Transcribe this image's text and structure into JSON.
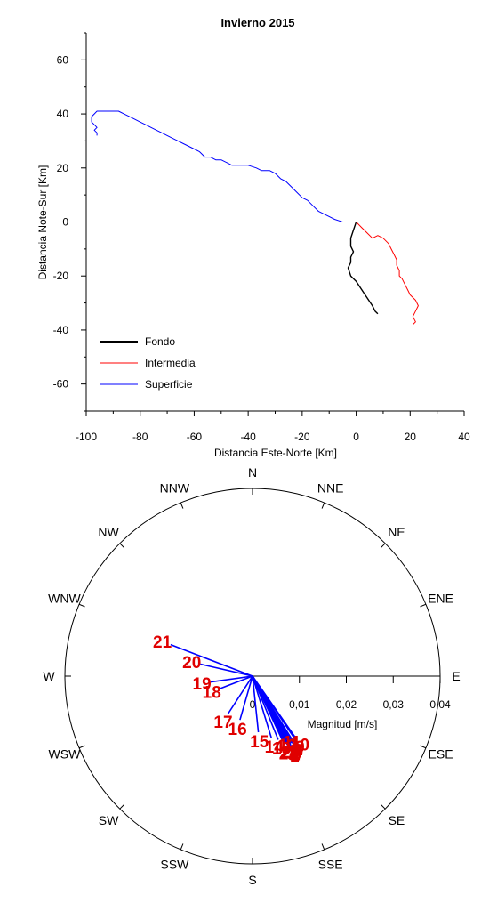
{
  "chart_data": [
    {
      "type": "line",
      "title": "Invierno 2015",
      "xlabel": "Distancia Este-Norte [Km]",
      "ylabel": "Distancia Note-Sur [Km]",
      "xlim": [
        -100,
        40
      ],
      "ylim": [
        -70,
        70
      ],
      "xticks": [
        -100,
        -80,
        -60,
        -40,
        -20,
        0,
        20,
        40
      ],
      "yticks": [
        -60,
        -40,
        -20,
        0,
        20,
        40,
        60
      ],
      "grid": false,
      "legend_position": "bottom-left",
      "series": [
        {
          "name": "Fondo",
          "color": "#000000",
          "points": [
            [
              0,
              0
            ],
            [
              -1,
              -3
            ],
            [
              -2,
              -6
            ],
            [
              -2,
              -9
            ],
            [
              -1,
              -11
            ],
            [
              -2,
              -13
            ],
            [
              -2,
              -15
            ],
            [
              -3,
              -17
            ],
            [
              -2,
              -20
            ],
            [
              0,
              -22
            ],
            [
              2,
              -25
            ],
            [
              4,
              -28
            ],
            [
              6,
              -31
            ],
            [
              7,
              -33
            ],
            [
              8,
              -34
            ]
          ]
        },
        {
          "name": "Intermedia",
          "color": "#ff0000",
          "points": [
            [
              0,
              0
            ],
            [
              2,
              -2
            ],
            [
              4,
              -4
            ],
            [
              6,
              -6
            ],
            [
              8,
              -5
            ],
            [
              10,
              -6
            ],
            [
              12,
              -8
            ],
            [
              13,
              -10
            ],
            [
              14,
              -12
            ],
            [
              15,
              -14
            ],
            [
              15,
              -16
            ],
            [
              16,
              -18
            ],
            [
              16,
              -20
            ],
            [
              17,
              -21
            ],
            [
              18,
              -23
            ],
            [
              19,
              -25
            ],
            [
              20,
              -27
            ],
            [
              22,
              -29
            ],
            [
              23,
              -31
            ],
            [
              22,
              -33
            ],
            [
              21,
              -35
            ],
            [
              22,
              -37
            ],
            [
              21,
              -38
            ]
          ]
        },
        {
          "name": "Superficie",
          "color": "#0000ff",
          "points": [
            [
              0,
              0
            ],
            [
              -5,
              0
            ],
            [
              -8,
              1
            ],
            [
              -10,
              2
            ],
            [
              -12,
              3
            ],
            [
              -14,
              4
            ],
            [
              -16,
              6
            ],
            [
              -18,
              8
            ],
            [
              -20,
              9
            ],
            [
              -22,
              11
            ],
            [
              -24,
              13
            ],
            [
              -26,
              15
            ],
            [
              -28,
              16
            ],
            [
              -30,
              18
            ],
            [
              -32,
              19
            ],
            [
              -35,
              19
            ],
            [
              -37,
              20
            ],
            [
              -40,
              21
            ],
            [
              -43,
              21
            ],
            [
              -46,
              21
            ],
            [
              -48,
              22
            ],
            [
              -50,
              23
            ],
            [
              -52,
              23
            ],
            [
              -54,
              24
            ],
            [
              -56,
              24
            ],
            [
              -58,
              26
            ],
            [
              -60,
              27
            ],
            [
              -62,
              28
            ],
            [
              -64,
              29
            ],
            [
              -66,
              30
            ],
            [
              -68,
              31
            ],
            [
              -70,
              32
            ],
            [
              -72,
              33
            ],
            [
              -74,
              34
            ],
            [
              -76,
              35
            ],
            [
              -78,
              36
            ],
            [
              -80,
              37
            ],
            [
              -82,
              38
            ],
            [
              -84,
              39
            ],
            [
              -86,
              40
            ],
            [
              -88,
              41
            ],
            [
              -90,
              41
            ],
            [
              -92,
              41
            ],
            [
              -94,
              41
            ],
            [
              -96,
              41
            ],
            [
              -97,
              40
            ],
            [
              -98,
              39
            ],
            [
              -98,
              37
            ],
            [
              -97,
              36
            ],
            [
              -96,
              35
            ],
            [
              -97,
              34
            ],
            [
              -96,
              33
            ],
            [
              -96,
              32
            ]
          ]
        }
      ]
    },
    {
      "type": "polar-vector",
      "xlabel": "Magnitud [m/s]",
      "rlim": [
        0,
        0.04
      ],
      "rticks": [
        "0",
        "0,01",
        "0,02",
        "0,03",
        "0,04"
      ],
      "directions": [
        "N",
        "NNE",
        "NE",
        "ENE",
        "E",
        "ESE",
        "SE",
        "SSE",
        "S",
        "SSW",
        "SW",
        "WSW",
        "W",
        "WNW",
        "NW",
        "NNW"
      ],
      "vector_color": "#0000ff",
      "label_color": "#e00000",
      "vectors": [
        {
          "label": "1",
          "angle": 152,
          "magnitude": 0.0172
        },
        {
          "label": "2",
          "angle": 151,
          "magnitude": 0.0171
        },
        {
          "label": "3",
          "angle": 153,
          "magnitude": 0.0167
        },
        {
          "label": "4",
          "angle": 149,
          "magnitude": 0.0168
        },
        {
          "label": "5",
          "angle": 150,
          "magnitude": 0.0165
        },
        {
          "label": "6",
          "angle": 151,
          "magnitude": 0.0166
        },
        {
          "label": "7",
          "angle": 152,
          "magnitude": 0.0164
        },
        {
          "label": "8",
          "angle": 148,
          "magnitude": 0.0166
        },
        {
          "label": "9",
          "angle": 146,
          "magnitude": 0.0162
        },
        {
          "label": "10",
          "angle": 145,
          "magnitude": 0.0158
        },
        {
          "label": "11",
          "angle": 149,
          "magnitude": 0.0144
        },
        {
          "label": "12",
          "angle": 153,
          "magnitude": 0.0145
        },
        {
          "label": "13",
          "angle": 158,
          "magnitude": 0.0146
        },
        {
          "label": "14",
          "angle": 163,
          "magnitude": 0.0138
        },
        {
          "label": "15",
          "angle": 174,
          "magnitude": 0.012
        },
        {
          "label": "16",
          "angle": 196,
          "magnitude": 0.0097
        },
        {
          "label": "17",
          "angle": 213,
          "magnitude": 0.0096
        },
        {
          "label": "18",
          "angle": 249,
          "magnitude": 0.0074
        },
        {
          "label": "19",
          "angle": 262,
          "magnitude": 0.009
        },
        {
          "label": "20",
          "angle": 283,
          "magnitude": 0.0114
        },
        {
          "label": "21",
          "angle": 291,
          "magnitude": 0.0187
        },
        {
          "label": "22",
          "angle": 153,
          "magnitude": 0.0163
        },
        {
          "label": "23",
          "angle": 155,
          "magnitude": 0.0162
        },
        {
          "label": "24",
          "angle": 154,
          "magnitude": 0.016
        }
      ]
    }
  ]
}
